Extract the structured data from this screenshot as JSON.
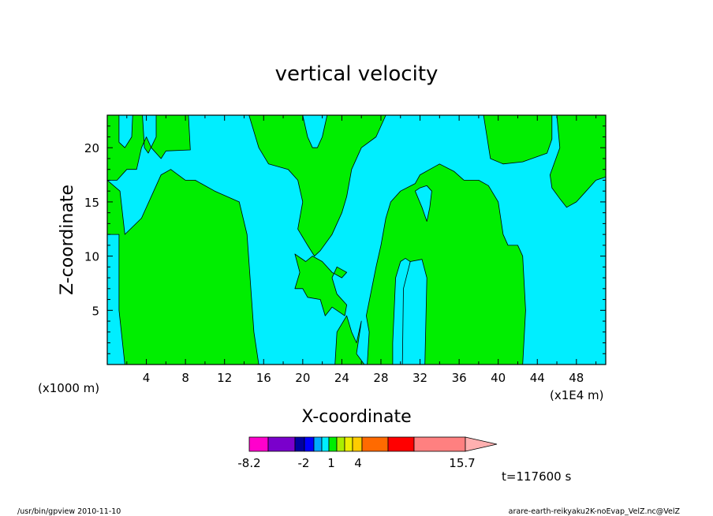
{
  "chart_data": {
    "type": "heatmap",
    "title": "vertical velocity",
    "xlabel": "X-coordinate",
    "ylabel": "Z-coordinate",
    "x_scale_label": "(x1000 m)",
    "x_unit_label": "(x1E4 m)",
    "xlim": [
      0,
      51
    ],
    "ylim": [
      0,
      23
    ],
    "x_ticks": [
      "4",
      "8",
      "12",
      "16",
      "20",
      "24",
      "28",
      "32",
      "36",
      "40",
      "44",
      "48"
    ],
    "y_ticks": [
      "5",
      "10",
      "15",
      "20"
    ],
    "field_colors": {
      "cyan": "#00eeff",
      "green": "#00ee00"
    },
    "regions": [
      {
        "color": "green",
        "points": [
          [
            0,
            17
          ],
          [
            1.3,
            16
          ],
          [
            1.8,
            12
          ],
          [
            3.5,
            13.5
          ],
          [
            5.5,
            17.5
          ],
          [
            6.5,
            18
          ],
          [
            8,
            17
          ],
          [
            9,
            17
          ],
          [
            11,
            16
          ],
          [
            13.5,
            15
          ],
          [
            14.3,
            12
          ],
          [
            15,
            3
          ],
          [
            15.5,
            0
          ],
          [
            1.8,
            0
          ],
          [
            1.2,
            5
          ],
          [
            1.2,
            12
          ],
          [
            0,
            12
          ]
        ]
      },
      {
        "color": "green",
        "points": [
          [
            0,
            23
          ],
          [
            0,
            18
          ],
          [
            1.2,
            16.5
          ],
          [
            2,
            17.5
          ],
          [
            3,
            19
          ],
          [
            4.5,
            19.5
          ],
          [
            5.5,
            18.5
          ],
          [
            6.5,
            18
          ],
          [
            8.5,
            17.5
          ],
          [
            10,
            17
          ],
          [
            12,
            16
          ],
          [
            13.5,
            15.5
          ],
          [
            14.5,
            14.5
          ],
          [
            15.3,
            12
          ],
          [
            16,
            3
          ],
          [
            15.5,
            0
          ],
          [
            0,
            0
          ]
        ],
        "hidden": true
      },
      {
        "color": "green",
        "points": [
          [
            0,
            23
          ],
          [
            1.2,
            23
          ],
          [
            1.2,
            20.5
          ],
          [
            1.8,
            20
          ],
          [
            2.5,
            21.5
          ],
          [
            3,
            23
          ],
          [
            3.5,
            23
          ],
          [
            3.8,
            20.5
          ],
          [
            4.5,
            19.8
          ],
          [
            5,
            21
          ],
          [
            5,
            23
          ],
          [
            6,
            23
          ],
          [
            6,
            19.7
          ],
          [
            7,
            19.5
          ],
          [
            8.5,
            19.7
          ],
          [
            8.3,
            23
          ]
        ],
        "hidden": true
      },
      {
        "color": "green",
        "points": [
          [
            0,
            23
          ],
          [
            1.2,
            23
          ],
          [
            1.2,
            20.5
          ],
          [
            1.8,
            20
          ],
          [
            2.5,
            21
          ],
          [
            2.6,
            23
          ],
          [
            3.6,
            23
          ],
          [
            3.8,
            20
          ],
          [
            4.2,
            19.5
          ],
          [
            5,
            21
          ],
          [
            5,
            23
          ],
          [
            8.3,
            23
          ],
          [
            8.5,
            19.8
          ],
          [
            6,
            19.7
          ],
          [
            5.5,
            19
          ],
          [
            4.5,
            20
          ],
          [
            4,
            21
          ],
          [
            3.5,
            20
          ],
          [
            3,
            18
          ],
          [
            2,
            18
          ],
          [
            1,
            17
          ],
          [
            0,
            17
          ]
        ]
      },
      {
        "color": "green",
        "points": [
          [
            14.5,
            23
          ],
          [
            15.5,
            20
          ],
          [
            16.5,
            18.5
          ],
          [
            18.5,
            18
          ],
          [
            19.5,
            17
          ],
          [
            20,
            15
          ],
          [
            19.5,
            12.5
          ],
          [
            20.5,
            11
          ],
          [
            21.2,
            10
          ],
          [
            21.8,
            10.5
          ],
          [
            23,
            12
          ],
          [
            24,
            14
          ],
          [
            24.5,
            15.5
          ],
          [
            25,
            18
          ],
          [
            26,
            20
          ],
          [
            27.5,
            21
          ],
          [
            28.5,
            23
          ],
          [
            22.5,
            23
          ],
          [
            22,
            21
          ],
          [
            21.5,
            20
          ],
          [
            21,
            20
          ],
          [
            20.5,
            21
          ],
          [
            20,
            23
          ]
        ]
      },
      {
        "color": "green",
        "points": [
          [
            19.2,
            10.2
          ],
          [
            20.3,
            9.5
          ],
          [
            21,
            10
          ],
          [
            22,
            9.5
          ],
          [
            23,
            8.5
          ],
          [
            24,
            8
          ],
          [
            24.5,
            8.5
          ],
          [
            23.5,
            9
          ],
          [
            23,
            8
          ],
          [
            23.5,
            6.5
          ],
          [
            24.5,
            5.5
          ],
          [
            24.3,
            4.5
          ],
          [
            23,
            5.3
          ],
          [
            22.3,
            4.5
          ],
          [
            21.8,
            6
          ],
          [
            20.5,
            6.2
          ],
          [
            20,
            7
          ],
          [
            19.2,
            7
          ],
          [
            19.7,
            8.5
          ]
        ]
      },
      {
        "color": "green",
        "points": [
          [
            23.3,
            0
          ],
          [
            23.5,
            3
          ],
          [
            24.5,
            4.5
          ],
          [
            25,
            3
          ],
          [
            25.5,
            2
          ],
          [
            26,
            4
          ],
          [
            25.5,
            1
          ],
          [
            26.3,
            0
          ]
        ]
      },
      {
        "color": "green",
        "points": [
          [
            26.6,
            0
          ],
          [
            26.8,
            3
          ],
          [
            26.5,
            4.5
          ],
          [
            27.5,
            9
          ],
          [
            28,
            11
          ],
          [
            28.5,
            13.5
          ],
          [
            29,
            15
          ],
          [
            30,
            16
          ],
          [
            31.5,
            16.7
          ],
          [
            32,
            17.5
          ],
          [
            33,
            18
          ],
          [
            34,
            18.5
          ],
          [
            35.5,
            17.8
          ],
          [
            36.5,
            17
          ],
          [
            38,
            17
          ],
          [
            39,
            16.5
          ],
          [
            40,
            15
          ],
          [
            40.5,
            12
          ],
          [
            41,
            11
          ],
          [
            42,
            11
          ],
          [
            42.5,
            10
          ],
          [
            42.8,
            5
          ],
          [
            42.5,
            0
          ],
          [
            34.7,
            0
          ],
          [
            32,
            0
          ],
          [
            32,
            8
          ],
          [
            31.8,
            9
          ],
          [
            30.5,
            9.8
          ],
          [
            30,
            9.5
          ],
          [
            29.5,
            8
          ],
          [
            29.2,
            2
          ],
          [
            29.2,
            0
          ]
        ]
      },
      {
        "color": "cyan",
        "points": [
          [
            30.2,
            0
          ],
          [
            30.3,
            7
          ],
          [
            31,
            9.5
          ],
          [
            32.2,
            9.7
          ],
          [
            32.7,
            8
          ],
          [
            32.5,
            0
          ]
        ]
      },
      {
        "color": "cyan",
        "points": [
          [
            31.5,
            16
          ],
          [
            32.2,
            14.5
          ],
          [
            32.7,
            13.2
          ],
          [
            33,
            14.5
          ],
          [
            33.2,
            16
          ],
          [
            32.7,
            16.5
          ],
          [
            32,
            16.3
          ]
        ]
      },
      {
        "color": "green",
        "points": [
          [
            38.5,
            23
          ],
          [
            39.2,
            19
          ],
          [
            40.5,
            18.5
          ],
          [
            42.5,
            18.7
          ],
          [
            45,
            19.5
          ],
          [
            45.5,
            20.8
          ],
          [
            45.5,
            23
          ]
        ]
      },
      {
        "color": "green",
        "points": [
          [
            46,
            23
          ],
          [
            46.3,
            20
          ],
          [
            45.3,
            17.5
          ],
          [
            45.5,
            16.3
          ],
          [
            46.3,
            15.3
          ],
          [
            47,
            14.5
          ],
          [
            48,
            15
          ],
          [
            49,
            16
          ],
          [
            50,
            17
          ],
          [
            51,
            17.3
          ],
          [
            51,
            23
          ]
        ]
      }
    ],
    "colorbar": {
      "colors": [
        "#ff00cc",
        "#7a00cc",
        "#0000a0",
        "#0000ff",
        "#00aaff",
        "#00eeff",
        "#00ee00",
        "#aaee00",
        "#eeee00",
        "#ffcc00",
        "#ff6a00",
        "#ff0000",
        "#ff8080",
        "#ffb0b0"
      ],
      "labels": [
        "-8.2",
        "-2",
        "1",
        "4",
        "15.7"
      ]
    }
  },
  "time_label": "t=117600 s",
  "footer_left": "/usr/bin/gpview   2010-11-10",
  "footer_right": "arare-earth-reikyaku2K-noEvap_VelZ.nc@VelZ"
}
